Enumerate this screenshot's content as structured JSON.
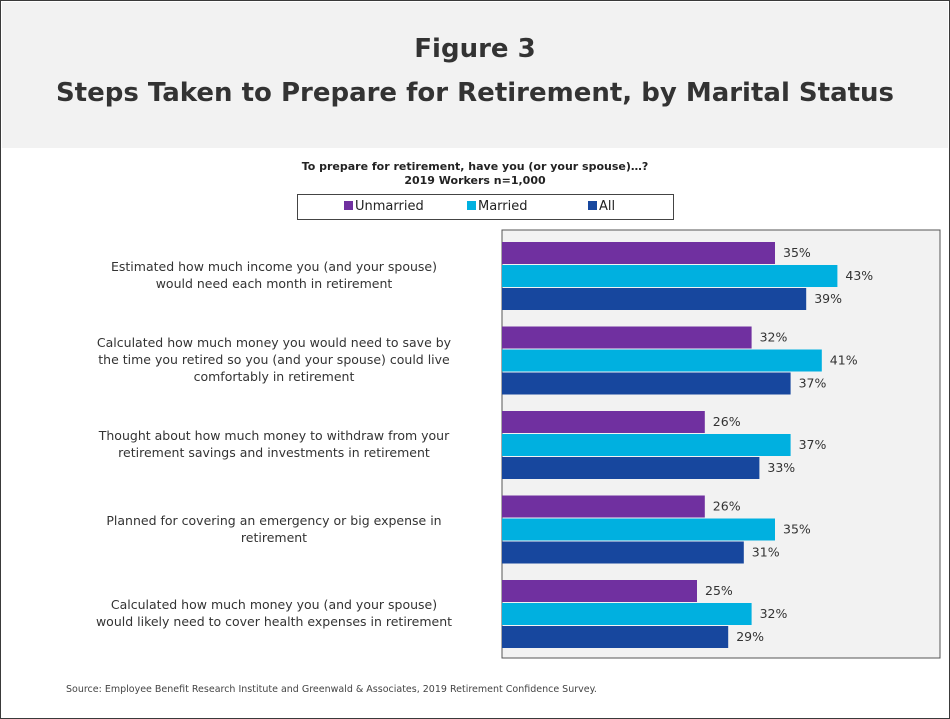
{
  "header": {
    "title_line1": "Figure 3",
    "title_line2": "Steps Taken to Prepare for Retirement, by Marital Status"
  },
  "question": "To prepare for retirement, have you (or your spouse)…?",
  "subquestion": "2019 Workers n=1,000",
  "source": "Source:  Employee Benefit Research Institute and Greenwald & Associates, 2019 Retirement Confidence Survey.",
  "chart_data": {
    "type": "bar",
    "orientation": "horizontal",
    "categories": [
      [
        "Estimated how much income you (and your spouse)",
        "would need each month in retirement"
      ],
      [
        "Calculated how much money you would need to save by",
        "the time you retired so you (and your spouse) could live",
        "comfortably in retirement"
      ],
      [
        "Thought about how much money to withdraw from your",
        "retirement savings and investments in retirement"
      ],
      [
        "Planned for covering an emergency or big expense in",
        "retirement"
      ],
      [
        "Calculated how much money you (and your spouse)",
        "would likely need to cover health expenses in retirement"
      ]
    ],
    "series": [
      {
        "name": "Unmarried",
        "color": "#7030a0",
        "values": [
          35,
          32,
          26,
          26,
          25
        ]
      },
      {
        "name": "Married",
        "color": "#00b0e0",
        "values": [
          43,
          41,
          37,
          35,
          32
        ]
      },
      {
        "name": "All",
        "color": "#17479e",
        "values": [
          39,
          37,
          33,
          31,
          29
        ]
      }
    ],
    "value_suffix": "%",
    "xlim": [
      0,
      100
    ],
    "plot_background": "#f2f2f2",
    "legend_position": "top"
  }
}
